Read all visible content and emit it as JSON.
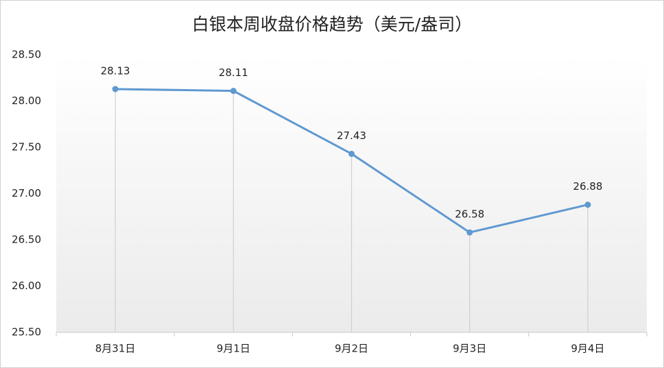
{
  "chart_data": {
    "type": "line",
    "title": "白银本周收盘价格趋势（美元/盎司）",
    "categories": [
      "8月31日",
      "9月1日",
      "9月2日",
      "9月3日",
      "9月4日"
    ],
    "series": [
      {
        "name": "白银",
        "color": "#5f98d0",
        "values": [
          28.13,
          28.11,
          27.43,
          26.58,
          26.88
        ]
      }
    ],
    "ylim": [
      25.5,
      28.5
    ],
    "yticks": [
      {
        "value": 25.5,
        "label": "25.50"
      },
      {
        "value": 26,
        "label": "26.00"
      },
      {
        "value": 26.5,
        "label": "26.50"
      },
      {
        "value": 27,
        "label": "27.00"
      },
      {
        "value": 27.5,
        "label": "27.50"
      },
      {
        "value": 28,
        "label": "28.00"
      },
      {
        "value": 28.5,
        "label": "28.50"
      }
    ],
    "grid": false,
    "drop_lines": true,
    "data_labels": true
  }
}
